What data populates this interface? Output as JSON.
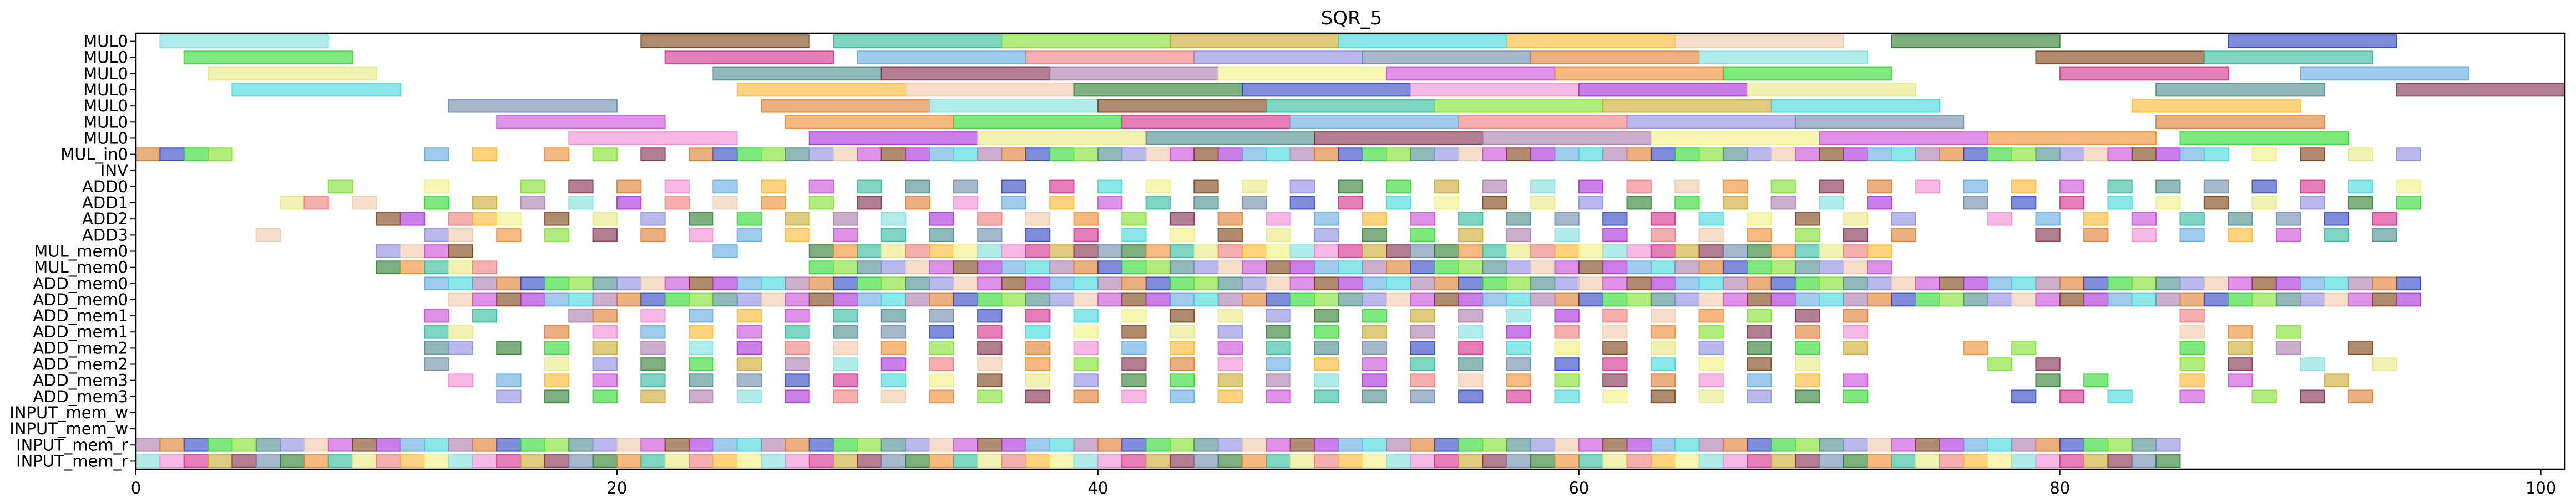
{
  "chart_data": {
    "type": "gantt",
    "title": "SQR_5",
    "xlabel": "",
    "ylabel": "",
    "xlim": [
      0,
      101
    ],
    "xticks": [
      0,
      20,
      40,
      60,
      80,
      100
    ],
    "grid": false,
    "legend": "none",
    "rows": [
      "MUL0",
      "MUL0",
      "MUL0",
      "MUL0",
      "MUL0",
      "MUL0",
      "MUL0",
      "MUL_in0",
      "INV",
      "ADD0",
      "ADD1",
      "ADD2",
      "ADD3",
      "MUL_mem0",
      "MUL_mem0",
      "ADD_mem0",
      "ADD_mem0",
      "ADD_mem1",
      "ADD_mem1",
      "ADD_mem2",
      "ADD_mem2",
      "ADD_mem3",
      "ADD_mem3",
      "INPUT_mem_w",
      "INPUT_mem_w",
      "INPUT_mem_r",
      "INPUT_mem_r"
    ],
    "palette": [
      "#7fe0dc",
      "#2a3fbf",
      "#f08a2a",
      "#7a3d10",
      "#f08ad6",
      "#2ad82a",
      "#2ab89a",
      "#a62ad8",
      "#d42a8a",
      "#7fe02a",
      "#e8e87f",
      "#5fa8e0",
      "#c8a82a",
      "#4a8a8a",
      "#f07a7a",
      "#3fd8d8",
      "#7f2a4a",
      "#8a8ae0",
      "#ffb52a",
      "#aa7aaa",
      "#6a8aaa",
      "#f0c8a8",
      "#f0f07f",
      "#e07a2a",
      "#2a7a2a",
      "#c84ad8"
    ],
    "long_bars": [
      {
        "row": 0,
        "tasks": [
          [
            1,
            8
          ],
          [
            21,
            28
          ],
          [
            29,
            36
          ],
          [
            36,
            43
          ],
          [
            43,
            50
          ],
          [
            50,
            57
          ],
          [
            57,
            64
          ],
          [
            64,
            71
          ],
          [
            73,
            80
          ],
          [
            87,
            94
          ]
        ]
      },
      {
        "row": 1,
        "tasks": [
          [
            2,
            9
          ],
          [
            22,
            29
          ],
          [
            30,
            37
          ],
          [
            37,
            44
          ],
          [
            44,
            51
          ],
          [
            51,
            58
          ],
          [
            58,
            65
          ],
          [
            65,
            72
          ],
          [
            79,
            86
          ],
          [
            86,
            93
          ]
        ]
      },
      {
        "row": 2,
        "tasks": [
          [
            3,
            10
          ],
          [
            24,
            31
          ],
          [
            31,
            38
          ],
          [
            38,
            45
          ],
          [
            45,
            52
          ],
          [
            52,
            59
          ],
          [
            59,
            66
          ],
          [
            66,
            73
          ],
          [
            80,
            87
          ],
          [
            90,
            97
          ]
        ]
      },
      {
        "row": 3,
        "tasks": [
          [
            4,
            11
          ],
          [
            25,
            32
          ],
          [
            32,
            39
          ],
          [
            39,
            46
          ],
          [
            46,
            53
          ],
          [
            53,
            60
          ],
          [
            60,
            67
          ],
          [
            67,
            74
          ],
          [
            84,
            91
          ],
          [
            94,
            101
          ]
        ]
      },
      {
        "row": 4,
        "tasks": [
          [
            13,
            20
          ],
          [
            26,
            33
          ],
          [
            33,
            40
          ],
          [
            40,
            47
          ],
          [
            47,
            54
          ],
          [
            54,
            61
          ],
          [
            61,
            68
          ],
          [
            68,
            75
          ],
          [
            83,
            90
          ]
        ]
      },
      {
        "row": 5,
        "tasks": [
          [
            15,
            22
          ],
          [
            27,
            34
          ],
          [
            34,
            41
          ],
          [
            41,
            48
          ],
          [
            48,
            55
          ],
          [
            55,
            62
          ],
          [
            62,
            69
          ],
          [
            69,
            76
          ],
          [
            84,
            91
          ]
        ]
      },
      {
        "row": 6,
        "tasks": [
          [
            18,
            25
          ],
          [
            28,
            35
          ],
          [
            35,
            42
          ],
          [
            42,
            49
          ],
          [
            49,
            56
          ],
          [
            56,
            63
          ],
          [
            63,
            70
          ],
          [
            70,
            77
          ],
          [
            77,
            84
          ],
          [
            85,
            92
          ]
        ]
      }
    ],
    "short_bars": [
      {
        "row": 7,
        "tasks": [
          0,
          1,
          2,
          3,
          12,
          14,
          17,
          19,
          21,
          23,
          24,
          25,
          26,
          27,
          28,
          29,
          30,
          31,
          32,
          33,
          34,
          35,
          36,
          37,
          38,
          39,
          40,
          41,
          42,
          43,
          44,
          45,
          46,
          47,
          48,
          49,
          50,
          51,
          52,
          53,
          54,
          55,
          56,
          57,
          58,
          59,
          60,
          61,
          62,
          63,
          64,
          65,
          66,
          67,
          68,
          69,
          70,
          71,
          72,
          73,
          74,
          75,
          76,
          77,
          78,
          79,
          80,
          81,
          82,
          83,
          84,
          85,
          86,
          88,
          90,
          92,
          94
        ]
      },
      {
        "row": 9,
        "tasks": [
          8,
          12,
          16,
          18,
          20,
          22,
          24,
          26,
          28,
          30,
          32,
          34,
          36,
          38,
          40,
          42,
          44,
          46,
          48,
          50,
          52,
          54,
          56,
          58,
          60,
          62,
          64,
          66,
          68,
          70,
          72,
          74,
          76,
          78,
          80,
          82,
          84,
          86,
          88,
          90,
          92,
          94
        ]
      },
      {
        "row": 10,
        "tasks": [
          6,
          7,
          9,
          12,
          14,
          16,
          18,
          20,
          22,
          24,
          26,
          28,
          30,
          32,
          34,
          36,
          38,
          40,
          42,
          44,
          46,
          48,
          50,
          52,
          54,
          56,
          58,
          60,
          62,
          64,
          66,
          68,
          70,
          72,
          76,
          78,
          80,
          82,
          84,
          86,
          88,
          90,
          92,
          94
        ]
      },
      {
        "row": 11,
        "tasks": [
          10,
          11,
          13,
          14,
          15,
          17,
          19,
          21,
          23,
          25,
          27,
          29,
          31,
          33,
          35,
          37,
          39,
          41,
          43,
          45,
          47,
          49,
          51,
          53,
          55,
          57,
          59,
          61,
          63,
          65,
          67,
          69,
          71,
          73,
          77,
          79,
          81,
          83,
          85,
          87,
          89,
          91,
          93
        ]
      },
      {
        "row": 12,
        "tasks": [
          5,
          12,
          13,
          15,
          17,
          19,
          21,
          23,
          25,
          27,
          29,
          31,
          33,
          35,
          37,
          39,
          41,
          43,
          45,
          47,
          49,
          51,
          53,
          55,
          57,
          59,
          61,
          63,
          65,
          67,
          69,
          71,
          73,
          79,
          81,
          83,
          85,
          87,
          89,
          91,
          93
        ]
      },
      {
        "row": 13,
        "tasks": [
          10,
          11,
          12,
          13,
          24,
          28,
          29,
          30,
          31,
          32,
          33,
          34,
          35,
          36,
          37,
          38,
          39,
          40,
          41,
          42,
          43,
          44,
          45,
          46,
          47,
          48,
          49,
          50,
          51,
          52,
          53,
          54,
          55,
          56,
          57,
          58,
          59,
          60,
          61,
          62,
          63,
          64,
          65,
          66,
          67,
          68,
          69,
          70,
          71,
          72
        ]
      },
      {
        "row": 14,
        "tasks": [
          10,
          11,
          12,
          13,
          14,
          28,
          29,
          30,
          31,
          32,
          33,
          34,
          35,
          36,
          37,
          38,
          39,
          40,
          41,
          42,
          43,
          44,
          45,
          46,
          47,
          48,
          49,
          50,
          51,
          52,
          53,
          54,
          55,
          56,
          57,
          58,
          59,
          60,
          61,
          62,
          63,
          64,
          65,
          66,
          67,
          68,
          69,
          70,
          71,
          72
        ]
      },
      {
        "row": 15,
        "tasks": [
          12,
          13,
          14,
          15,
          16,
          17,
          18,
          19,
          20,
          21,
          22,
          23,
          24,
          25,
          26,
          27,
          28,
          29,
          30,
          31,
          32,
          33,
          34,
          35,
          36,
          37,
          38,
          39,
          40,
          41,
          42,
          43,
          44,
          45,
          46,
          47,
          48,
          49,
          50,
          51,
          52,
          53,
          54,
          55,
          56,
          57,
          58,
          59,
          60,
          61,
          62,
          63,
          64,
          65,
          66,
          67,
          68,
          69,
          70,
          71,
          72,
          73,
          74,
          75,
          76,
          77,
          78,
          79,
          80,
          81,
          82,
          83,
          84,
          85,
          86,
          87,
          88,
          89,
          90,
          91,
          92,
          93,
          94
        ]
      },
      {
        "row": 16,
        "tasks": [
          13,
          14,
          15,
          16,
          17,
          18,
          19,
          20,
          21,
          22,
          23,
          24,
          25,
          26,
          27,
          28,
          29,
          30,
          31,
          32,
          33,
          34,
          35,
          36,
          37,
          38,
          39,
          40,
          41,
          42,
          43,
          44,
          45,
          46,
          47,
          48,
          49,
          50,
          51,
          52,
          53,
          54,
          55,
          56,
          57,
          58,
          59,
          60,
          61,
          62,
          63,
          64,
          65,
          66,
          67,
          68,
          69,
          70,
          71,
          72,
          73,
          74,
          75,
          76,
          77,
          78,
          79,
          80,
          81,
          82,
          83,
          84,
          85,
          86,
          87,
          88,
          89,
          90,
          91,
          92,
          93,
          94
        ]
      },
      {
        "row": 17,
        "tasks": [
          12,
          14,
          18,
          19,
          21,
          23,
          25,
          27,
          29,
          31,
          33,
          35,
          37,
          39,
          41,
          43,
          45,
          47,
          49,
          51,
          53,
          55,
          57,
          59,
          61,
          63,
          65,
          67,
          69,
          71,
          85
        ]
      },
      {
        "row": 18,
        "tasks": [
          12,
          13,
          17,
          19,
          21,
          23,
          25,
          27,
          29,
          31,
          33,
          35,
          37,
          39,
          41,
          43,
          45,
          47,
          49,
          51,
          53,
          55,
          57,
          59,
          61,
          63,
          65,
          67,
          69,
          71,
          85,
          87,
          89
        ]
      },
      {
        "row": 19,
        "tasks": [
          12,
          13,
          15,
          17,
          19,
          21,
          23,
          25,
          27,
          29,
          31,
          33,
          35,
          37,
          39,
          41,
          43,
          45,
          47,
          49,
          51,
          53,
          55,
          57,
          59,
          61,
          63,
          65,
          67,
          69,
          71,
          76,
          78,
          85,
          87,
          89,
          92
        ]
      },
      {
        "row": 20,
        "tasks": [
          12,
          17,
          19,
          21,
          23,
          25,
          27,
          29,
          31,
          33,
          35,
          37,
          39,
          41,
          43,
          45,
          47,
          49,
          51,
          53,
          55,
          57,
          59,
          61,
          63,
          65,
          67,
          69,
          77,
          79,
          85,
          87,
          90,
          93
        ]
      },
      {
        "row": 21,
        "tasks": [
          13,
          15,
          17,
          19,
          21,
          23,
          25,
          27,
          29,
          31,
          33,
          35,
          37,
          39,
          41,
          43,
          45,
          47,
          49,
          51,
          53,
          55,
          57,
          59,
          61,
          63,
          65,
          67,
          69,
          71,
          79,
          81,
          85,
          87,
          91
        ]
      },
      {
        "row": 22,
        "tasks": [
          15,
          17,
          19,
          21,
          23,
          25,
          27,
          29,
          31,
          33,
          35,
          37,
          39,
          41,
          43,
          45,
          47,
          49,
          51,
          53,
          55,
          57,
          59,
          61,
          63,
          65,
          67,
          69,
          71,
          78,
          80,
          82,
          85,
          88,
          90,
          92
        ]
      },
      {
        "row": 25,
        "tasks": [
          0,
          1,
          2,
          3,
          4,
          5,
          6,
          7,
          8,
          9,
          10,
          11,
          12,
          13,
          14,
          15,
          16,
          17,
          18,
          19,
          20,
          21,
          22,
          23,
          24,
          25,
          26,
          27,
          28,
          29,
          30,
          31,
          32,
          33,
          34,
          35,
          36,
          37,
          38,
          39,
          40,
          41,
          42,
          43,
          44,
          45,
          46,
          47,
          48,
          49,
          50,
          51,
          52,
          53,
          54,
          55,
          56,
          57,
          58,
          59,
          60,
          61,
          62,
          63,
          64,
          65,
          66,
          67,
          68,
          69,
          70,
          71,
          72,
          73,
          74,
          75,
          76,
          77,
          78,
          79,
          80,
          81,
          82,
          83,
          84
        ]
      },
      {
        "row": 26,
        "tasks": [
          0,
          1,
          2,
          3,
          4,
          5,
          6,
          7,
          8,
          9,
          10,
          11,
          12,
          13,
          14,
          15,
          16,
          17,
          18,
          19,
          20,
          21,
          22,
          23,
          24,
          25,
          26,
          27,
          28,
          29,
          30,
          31,
          32,
          33,
          34,
          35,
          36,
          37,
          38,
          39,
          40,
          41,
          42,
          43,
          44,
          45,
          46,
          47,
          48,
          49,
          50,
          51,
          52,
          53,
          54,
          55,
          56,
          57,
          58,
          59,
          60,
          61,
          62,
          63,
          64,
          65,
          66,
          67,
          68,
          69,
          70,
          71,
          72,
          73,
          74,
          75,
          76,
          77,
          78,
          79,
          80,
          81,
          82,
          83,
          84
        ]
      }
    ]
  }
}
